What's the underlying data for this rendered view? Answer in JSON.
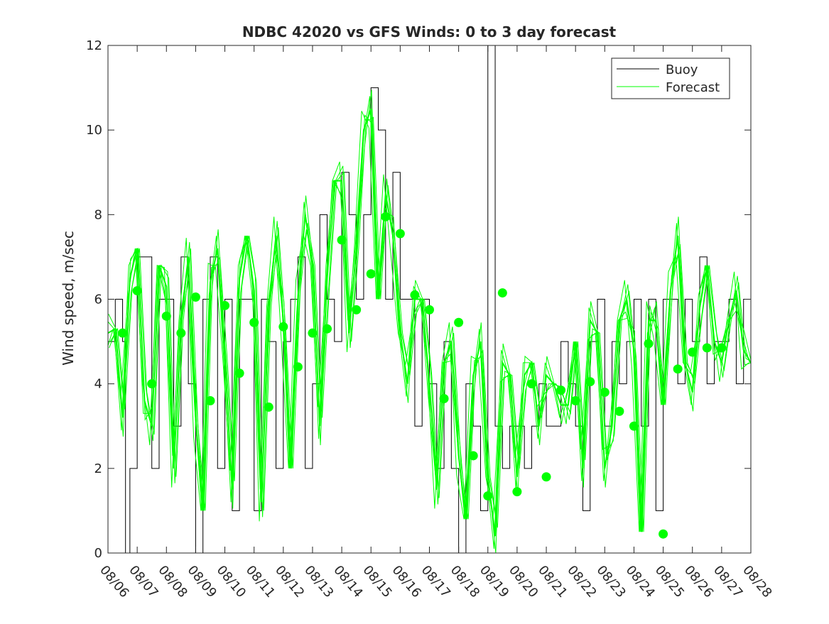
{
  "chart_data": {
    "type": "line",
    "title": "NDBC 42020 vs GFS Winds: 0 to 3 day forecast",
    "xlabel": "",
    "ylabel": "Wind speed, m/sec",
    "xlim": [
      0,
      22
    ],
    "ylim": [
      0,
      12
    ],
    "x_tick_values": [
      0,
      1,
      2,
      3,
      4,
      5,
      6,
      7,
      8,
      9,
      10,
      11,
      12,
      13,
      14,
      15,
      16,
      17,
      18,
      19,
      20,
      21,
      22
    ],
    "x_tick_labels": [
      "08/06",
      "08/07",
      "08/08",
      "08/09",
      "08/10",
      "08/11",
      "08/12",
      "08/13",
      "08/14",
      "08/15",
      "08/16",
      "08/17",
      "08/18",
      "08/19",
      "08/20",
      "08/21",
      "08/22",
      "08/23",
      "08/24",
      "08/25",
      "08/26",
      "08/27",
      "08/28"
    ],
    "y_tick_values": [
      0,
      2,
      4,
      6,
      8,
      10,
      12
    ],
    "y_tick_labels": [
      "0",
      "2",
      "4",
      "6",
      "8",
      "10",
      "12"
    ],
    "legend": {
      "position": "top-right",
      "entries": [
        {
          "label": "Buoy",
          "color": "#000000"
        },
        {
          "label": "Forecast",
          "color": "#00ff00"
        }
      ]
    },
    "colors": {
      "buoy": "#000000",
      "forecast": "#00ff00",
      "markers": "#00ff00"
    },
    "series": [
      {
        "name": "Buoy",
        "style": "stairs",
        "x": [
          0.0,
          0.25,
          0.5,
          0.6,
          0.75,
          1.0,
          1.25,
          1.5,
          1.75,
          2.0,
          2.25,
          2.5,
          2.75,
          3.0,
          3.25,
          3.5,
          3.75,
          4.0,
          4.25,
          4.5,
          4.75,
          5.0,
          5.25,
          5.5,
          5.75,
          6.0,
          6.25,
          6.5,
          6.75,
          7.0,
          7.25,
          7.5,
          7.75,
          8.0,
          8.25,
          8.5,
          8.75,
          9.0,
          9.25,
          9.5,
          9.75,
          10.0,
          10.25,
          10.5,
          10.75,
          11.0,
          11.25,
          11.5,
          11.75,
          12.0,
          12.25,
          12.5,
          12.75,
          13.0,
          13.25,
          13.5,
          13.75,
          14.0,
          14.25,
          14.5,
          14.75,
          15.0,
          15.25,
          15.5,
          15.75,
          16.0,
          16.25,
          16.5,
          16.75,
          17.0,
          17.25,
          17.5,
          17.75,
          18.0,
          18.25,
          18.5,
          18.75,
          19.0,
          19.25,
          19.5,
          19.75,
          20.0,
          20.25,
          20.5,
          20.75,
          21.0,
          21.25,
          21.5,
          21.75,
          22.0
        ],
        "y": [
          5,
          6,
          5,
          0,
          2,
          7,
          7,
          2,
          6,
          6,
          3,
          7,
          4,
          0,
          6,
          7,
          2,
          6,
          1,
          6,
          6,
          1,
          6,
          5,
          2,
          5,
          6,
          7,
          2,
          4,
          8,
          6,
          5,
          9,
          8,
          6,
          8,
          11,
          10,
          6,
          9,
          6,
          6,
          3,
          6,
          4,
          2,
          5,
          2,
          0,
          4,
          3,
          1,
          12,
          3,
          2,
          3,
          3,
          2,
          3,
          4,
          3,
          3,
          5,
          4,
          3,
          1,
          5,
          6,
          3,
          5,
          4,
          5,
          6,
          3,
          6,
          1,
          6,
          6,
          4,
          6,
          5,
          7,
          4,
          5,
          5,
          6,
          4,
          6,
          5
        ]
      },
      {
        "name": "Forecast",
        "style": "thin-ensemble",
        "x": [
          0.0,
          0.25,
          0.5,
          0.75,
          1.0,
          1.25,
          1.5,
          1.75,
          2.0,
          2.25,
          2.5,
          2.75,
          3.0,
          3.25,
          3.5,
          3.75,
          4.0,
          4.25,
          4.5,
          4.75,
          5.0,
          5.25,
          5.5,
          5.75,
          6.0,
          6.25,
          6.5,
          6.75,
          7.0,
          7.25,
          7.5,
          7.75,
          8.0,
          8.25,
          8.5,
          8.75,
          9.0,
          9.25,
          9.5,
          9.75,
          10.0,
          10.25,
          10.5,
          10.75,
          11.0,
          11.25,
          11.5,
          11.75,
          12.0,
          12.25,
          12.5,
          12.75,
          13.0,
          13.25,
          13.5,
          13.75,
          14.0,
          14.25,
          14.5,
          14.75,
          15.0,
          15.25,
          15.5,
          15.75,
          16.0,
          16.25,
          16.5,
          16.75,
          17.0,
          17.25,
          17.5,
          17.75,
          18.0,
          18.25,
          18.5,
          18.75,
          19.0,
          19.25,
          19.5,
          19.75,
          20.0,
          20.25,
          20.5,
          20.75,
          21.0,
          21.25,
          21.5,
          21.75,
          22.0
        ],
        "y": [
          5.2,
          5.3,
          3.2,
          6.5,
          7.2,
          3.6,
          3.0,
          6.8,
          6.3,
          2.0,
          5.5,
          7.0,
          3.2,
          1.0,
          6.4,
          7.2,
          4.6,
          1.5,
          6.5,
          7.5,
          6.2,
          1.2,
          5.8,
          7.5,
          5.5,
          2.0,
          6.0,
          8.0,
          6.8,
          3.0,
          6.5,
          8.8,
          8.8,
          5.2,
          7.2,
          10.0,
          10.5,
          6.0,
          8.5,
          7.5,
          5.2,
          4.0,
          6.0,
          6.0,
          4.0,
          1.5,
          4.5,
          5.0,
          2.3,
          0.8,
          4.2,
          5.0,
          1.8,
          0.4,
          4.5,
          4.2,
          1.8,
          4.2,
          4.5,
          3.0,
          4.2,
          4.0,
          3.5,
          3.5,
          5.0,
          2.0,
          5.5,
          5.2,
          2.0,
          3.0,
          5.5,
          6.0,
          4.8,
          0.5,
          5.5,
          5.5,
          3.5,
          6.2,
          7.5,
          4.5,
          3.8,
          5.8,
          6.8,
          5.0,
          4.5,
          5.5,
          6.2,
          4.8,
          4.5
        ]
      },
      {
        "name": "Forecast markers",
        "style": "markers",
        "x": [
          0.5,
          1.0,
          1.5,
          2.0,
          2.5,
          3.0,
          3.5,
          4.0,
          4.5,
          5.0,
          5.5,
          6.0,
          6.5,
          7.0,
          7.5,
          8.0,
          8.5,
          9.0,
          9.5,
          10.0,
          10.5,
          11.0,
          11.5,
          12.0,
          12.5,
          13.0,
          13.5,
          14.0,
          14.5,
          15.0,
          15.5,
          16.0,
          16.5,
          17.0,
          17.5,
          18.0,
          18.5,
          19.0,
          19.5,
          20.0,
          20.5,
          21.0
        ],
        "y": [
          5.2,
          6.2,
          4.0,
          5.6,
          5.2,
          6.05,
          3.6,
          5.85,
          4.25,
          5.45,
          3.45,
          5.35,
          4.4,
          5.2,
          5.3,
          7.4,
          5.75,
          6.6,
          7.95,
          7.55,
          6.1,
          5.75,
          3.65,
          5.45,
          2.3,
          1.35,
          6.15,
          1.45,
          4.0,
          1.8,
          3.85,
          3.6,
          4.05,
          3.8,
          3.35,
          3.0,
          4.95,
          0.45,
          4.35,
          4.75,
          4.85,
          4.85
        ]
      }
    ]
  }
}
